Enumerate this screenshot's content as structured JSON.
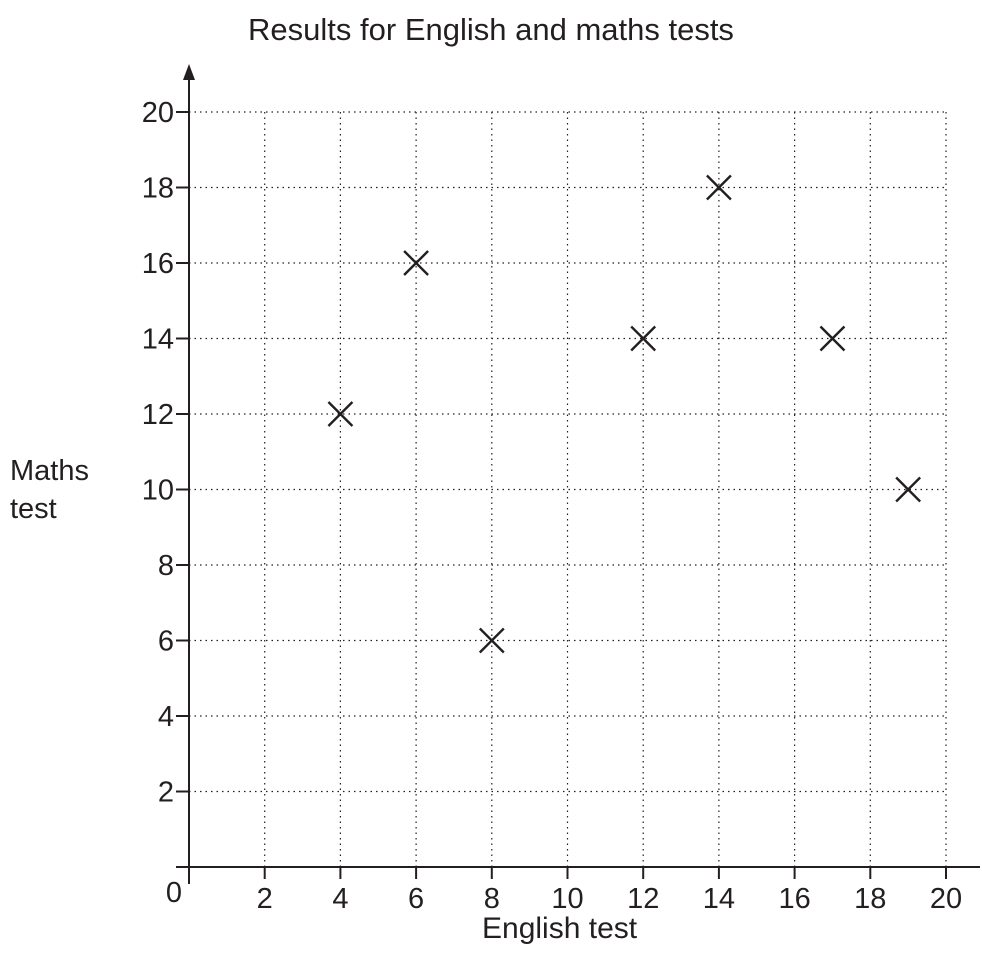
{
  "chart_data": {
    "type": "scatter",
    "title": "Results for English and maths tests",
    "xlabel": "English test",
    "ylabel": "Maths\ntest",
    "xlim": [
      0,
      20
    ],
    "ylim": [
      0,
      20
    ],
    "x_ticks": [
      2,
      4,
      6,
      8,
      10,
      12,
      14,
      16,
      18,
      20
    ],
    "y_ticks": [
      2,
      4,
      6,
      8,
      10,
      12,
      14,
      16,
      18,
      20
    ],
    "origin_label": "0",
    "grid": true,
    "grid_style": "dotted",
    "marker": "cross",
    "points": [
      {
        "x": 4,
        "y": 12
      },
      {
        "x": 6,
        "y": 16
      },
      {
        "x": 8,
        "y": 6
      },
      {
        "x": 12,
        "y": 14
      },
      {
        "x": 14,
        "y": 18
      },
      {
        "x": 17,
        "y": 14
      },
      {
        "x": 19,
        "y": 10
      }
    ]
  },
  "colors": {
    "ink": "#231f20",
    "grid": "#231f20"
  }
}
